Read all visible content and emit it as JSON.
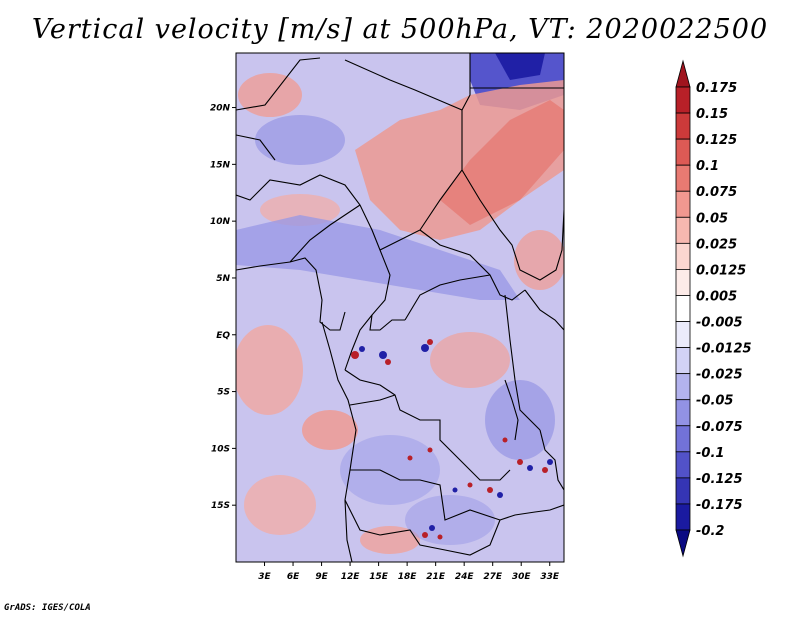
{
  "title": "Vertical velocity [m/s] at 500hPa, VT: 2020022500",
  "credit": "GrADS: IGES/COLA",
  "map": {
    "lat_labels": [
      "20N",
      "15N",
      "10N",
      "5N",
      "EQ",
      "5S",
      "10S",
      "15S"
    ],
    "lat_values": [
      20,
      15,
      10,
      5,
      0,
      -5,
      -10,
      -15
    ],
    "lon_labels": [
      "3E",
      "6E",
      "9E",
      "12E",
      "15E",
      "18E",
      "21E",
      "24E",
      "27E",
      "30E",
      "33E"
    ],
    "lon_values": [
      3,
      6,
      9,
      12,
      15,
      18,
      21,
      24,
      27,
      30,
      33
    ],
    "lon_range": [
      0,
      34.5
    ],
    "lat_range": [
      -20,
      24.8
    ]
  },
  "colorbar": {
    "labels": [
      "0.175",
      "0.15",
      "0.125",
      "0.1",
      "0.075",
      "0.05",
      "0.025",
      "0.0125",
      "0.005",
      "-0.005",
      "-0.0125",
      "-0.025",
      "-0.05",
      "-0.075",
      "-0.1",
      "-0.125",
      "-0.175",
      "-0.2"
    ],
    "colors": [
      "#a0141e",
      "#b82028",
      "#cc3a3a",
      "#dd5a55",
      "#e87a72",
      "#f19890",
      "#f7b8b0",
      "#fbd6d0",
      "#fdebe8",
      "#ffffff",
      "#ebebfb",
      "#d2d2f6",
      "#b3b3ee",
      "#9292e4",
      "#7272d8",
      "#5252c8",
      "#3535b4",
      "#1a1aa0",
      "#0a0a82"
    ],
    "top_color": "#a0141e",
    "bottom_color": "#0a0a82"
  },
  "palette": {
    "background_field": "#c9c4ee",
    "red_mid": "#ec8a84",
    "red_dark": "#b82028",
    "blue_mid": "#8686e0",
    "blue_dark": "#2020a6",
    "border": "#000000"
  }
}
